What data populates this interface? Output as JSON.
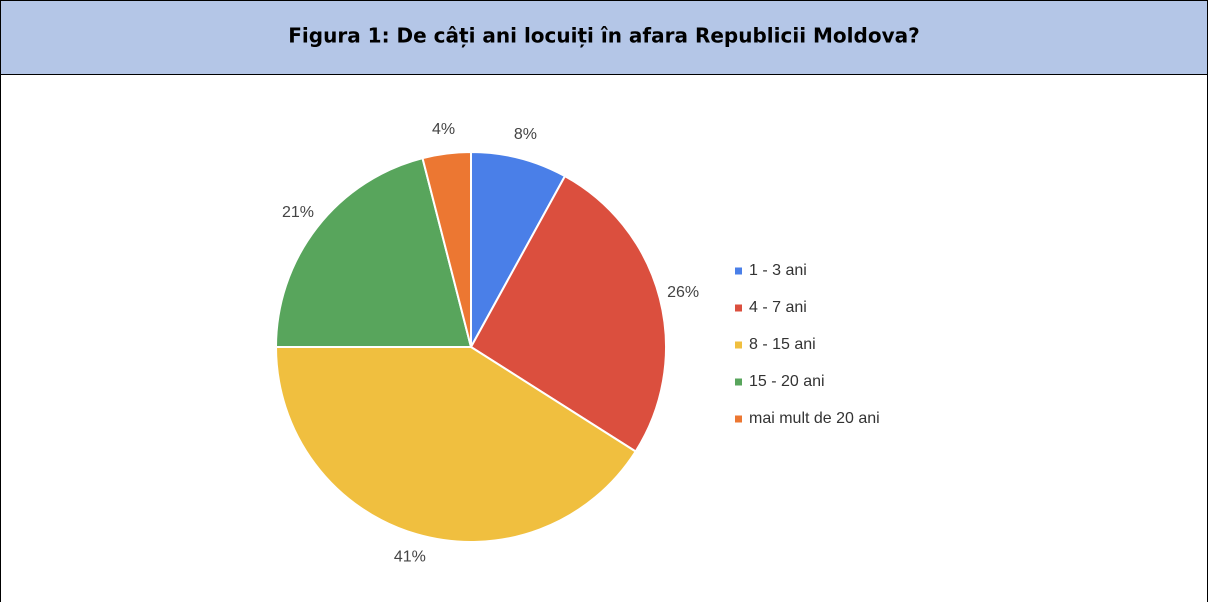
{
  "chart_data": {
    "type": "pie",
    "title": "Figura 1: De câți ani locuiți în afara Republicii Moldova?",
    "categories": [
      "1 - 3 ani",
      "4 - 7 ani",
      "8 - 15 ani",
      "15 - 20 ani",
      "mai mult de 20 ani"
    ],
    "values": [
      8,
      26,
      41,
      21,
      4
    ],
    "value_labels": [
      "8%",
      "26%",
      "41%",
      "21%",
      "4%"
    ],
    "colors": [
      "#4a7fe8",
      "#db4f3e",
      "#f0bf3f",
      "#58a55c",
      "#ec7732"
    ],
    "legend": "right"
  }
}
